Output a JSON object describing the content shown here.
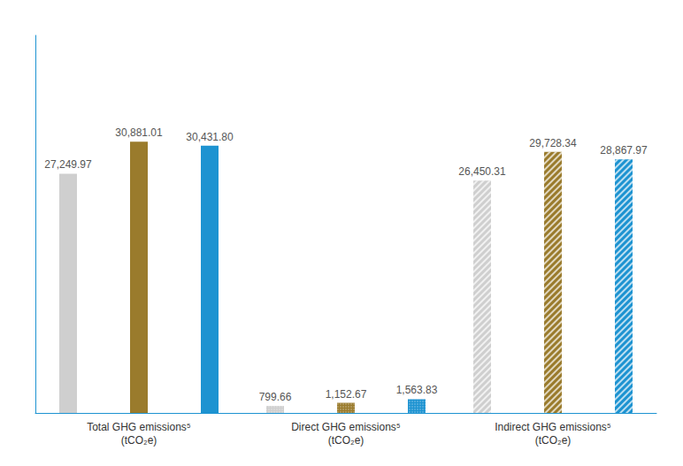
{
  "chart_data": {
    "type": "bar",
    "categories": [
      "Total GHG emissions⁵ (tCO₂e)",
      "Direct GHG emissions⁵ (tCO₂e)",
      "Indirect GHG emissions⁵ (tCO₂e)"
    ],
    "series": [
      {
        "color": "#cfcfcf",
        "values": [
          27249.97,
          799.66,
          26450.31
        ],
        "value_labels": [
          "27,249.97",
          "799.66",
          "26,450.31"
        ]
      },
      {
        "color": "#9a7b2c",
        "values": [
          30881.01,
          1152.67,
          29728.34
        ],
        "value_labels": [
          "30,881.01",
          "1,152.67",
          "29,728.34"
        ]
      },
      {
        "color": "#1d93d1",
        "values": [
          30431.8,
          1563.83,
          28867.97
        ],
        "value_labels": [
          "30,431.80",
          "1,563.83",
          "28,867.97"
        ]
      }
    ],
    "ylim": [
      0,
      43000
    ],
    "tick_labels": "x",
    "data_labels": true,
    "grid": false
  }
}
